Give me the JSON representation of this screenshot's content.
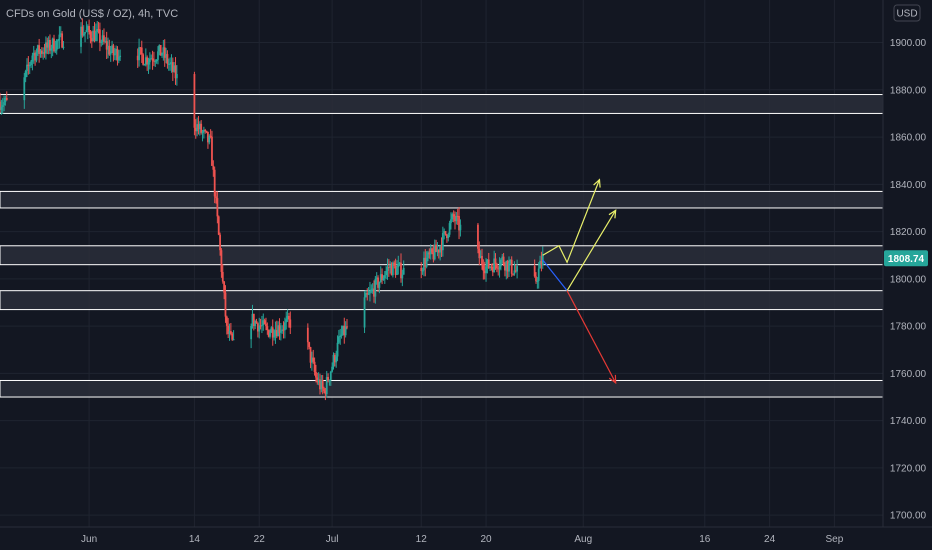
{
  "header": {
    "title": "CFDs on Gold (US$ / OZ), 4h, TVC",
    "currency_button": "USD"
  },
  "colors": {
    "background": "#131722",
    "up_candle": "#26a69a",
    "down_candle": "#ef5350",
    "zone_fill": "#2a2e39",
    "zone_border": "#ffffff",
    "price_badge": "#26a69a",
    "scenario_up": "#e8ef6a",
    "scenario_down": "#e53935",
    "scenario_connector": "#2962ff"
  },
  "chart_data": {
    "type": "candlestick",
    "title": "CFDs on Gold (US$ / OZ), 4h, TVC",
    "xlabel": "",
    "ylabel": "",
    "currency": "USD",
    "ylim": [
      1695,
      1918
    ],
    "yticks": [
      1700,
      1720,
      1740,
      1760,
      1780,
      1800,
      1820,
      1840,
      1860,
      1880,
      1900
    ],
    "xticks": [
      {
        "label": "Jun",
        "date": "2021-06-01"
      },
      {
        "label": "14",
        "date": "2021-06-14"
      },
      {
        "label": "22",
        "date": "2021-06-22"
      },
      {
        "label": "Jul",
        "date": "2021-07-01"
      },
      {
        "label": "12",
        "date": "2021-07-12"
      },
      {
        "label": "20",
        "date": "2021-07-20"
      },
      {
        "label": "Aug",
        "date": "2021-08-01"
      },
      {
        "label": "16",
        "date": "2021-08-16"
      },
      {
        "label": "24",
        "date": "2021-08-24"
      },
      {
        "label": "Sep",
        "date": "2021-09-01"
      }
    ],
    "xrange": [
      "2021-05-21",
      "2021-09-07"
    ],
    "last_price": 1808.74,
    "last_price_label": "1808.74",
    "path_closes": [
      [
        "2021-05-21",
        1875
      ],
      [
        "2021-05-23",
        1873
      ],
      [
        "2021-05-25",
        1895
      ],
      [
        "2021-05-27",
        1898
      ],
      [
        "2021-05-29",
        1902
      ],
      [
        "2021-05-31",
        1905
      ],
      [
        "2021-06-02",
        1903
      ],
      [
        "2021-06-04",
        1895
      ],
      [
        "2021-06-06",
        1898
      ],
      [
        "2021-06-08",
        1893
      ],
      [
        "2021-06-10",
        1896
      ],
      [
        "2021-06-12",
        1884
      ],
      [
        "2021-06-14",
        1866
      ],
      [
        "2021-06-16",
        1857
      ],
      [
        "2021-06-17",
        1818
      ],
      [
        "2021-06-18",
        1778
      ],
      [
        "2021-06-19",
        1770
      ],
      [
        "2021-06-21",
        1783
      ],
      [
        "2021-06-23",
        1778
      ],
      [
        "2021-06-25",
        1780
      ],
      [
        "2021-06-27",
        1784
      ],
      [
        "2021-06-29",
        1758
      ],
      [
        "2021-06-30",
        1752
      ],
      [
        "2021-07-02",
        1775
      ],
      [
        "2021-07-04",
        1785
      ],
      [
        "2021-07-06",
        1795
      ],
      [
        "2021-07-08",
        1805
      ],
      [
        "2021-07-10",
        1803
      ],
      [
        "2021-07-12",
        1806
      ],
      [
        "2021-07-14",
        1812
      ],
      [
        "2021-07-16",
        1826
      ],
      [
        "2021-07-18",
        1815
      ],
      [
        "2021-07-20",
        1805
      ],
      [
        "2021-07-22",
        1808
      ],
      [
        "2021-07-24",
        1802
      ],
      [
        "2021-07-26",
        1798
      ],
      [
        "2021-07-27",
        1808.74
      ]
    ],
    "zones": [
      {
        "low": 1870,
        "high": 1878
      },
      {
        "low": 1830,
        "high": 1837
      },
      {
        "low": 1806,
        "high": 1814
      },
      {
        "low": 1787,
        "high": 1795
      },
      {
        "low": 1750,
        "high": 1757
      }
    ],
    "scenario_arrows": [
      {
        "color": "up",
        "points": [
          [
            "2021-07-27",
            1810
          ],
          [
            "2021-07-29",
            1814
          ],
          [
            "2021-07-30",
            1807
          ],
          [
            "2021-08-03",
            1842
          ]
        ]
      },
      {
        "color": "connector",
        "points": [
          [
            "2021-07-27",
            1808
          ],
          [
            "2021-07-30",
            1795
          ]
        ]
      },
      {
        "color": "up",
        "points": [
          [
            "2021-07-30",
            1795
          ],
          [
            "2021-08-05",
            1829
          ]
        ]
      },
      {
        "color": "down",
        "points": [
          [
            "2021-07-30",
            1795
          ],
          [
            "2021-08-05",
            1756
          ]
        ]
      }
    ]
  }
}
